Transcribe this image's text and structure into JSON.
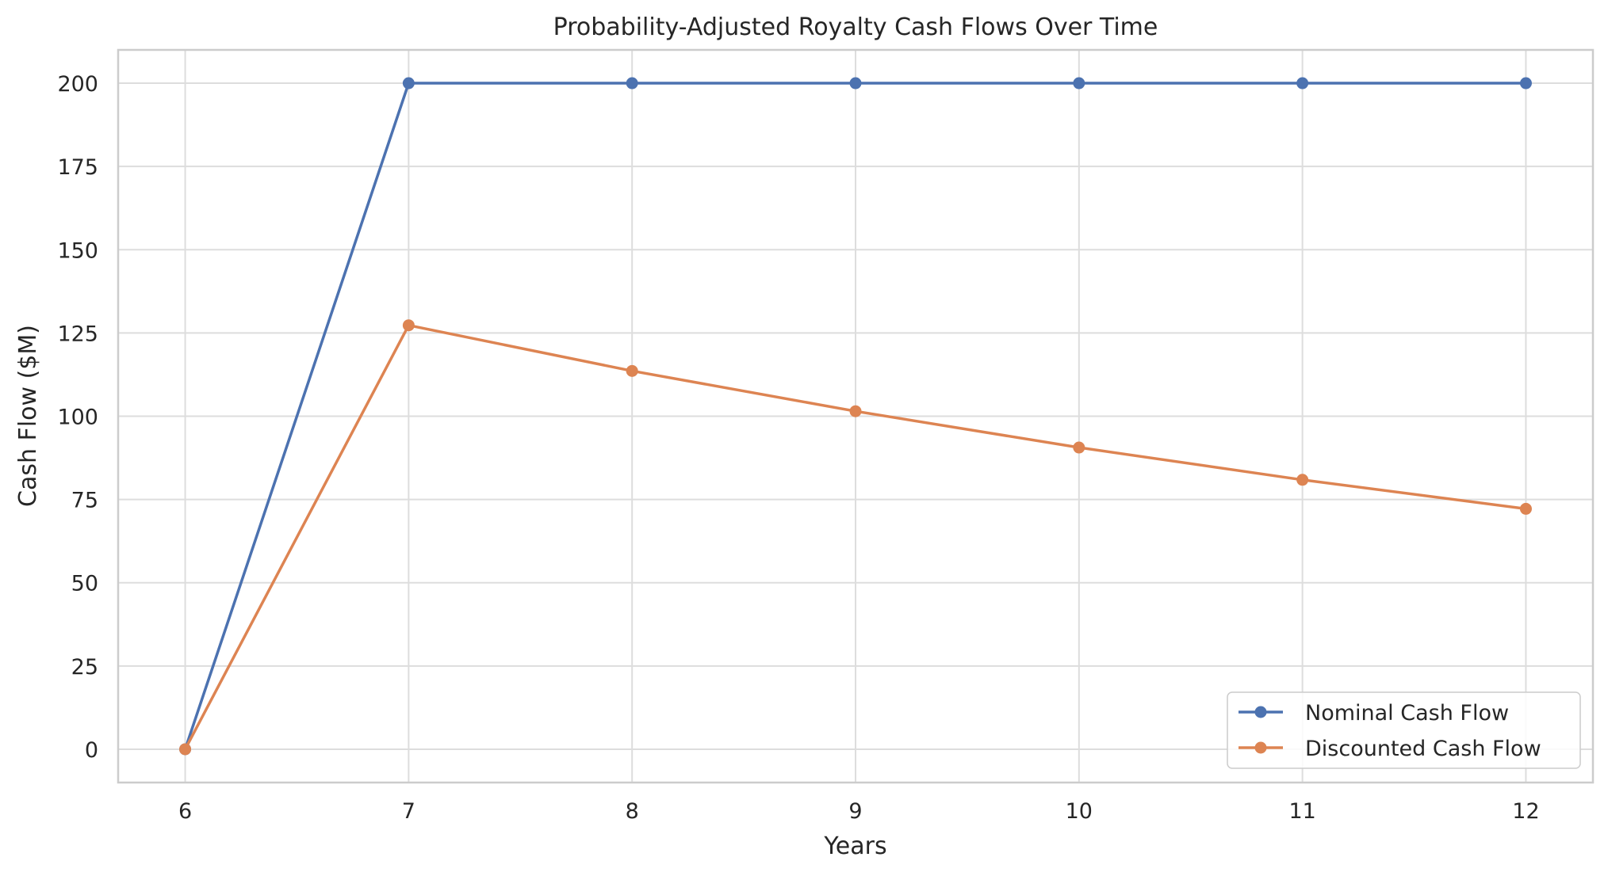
{
  "chart_data": {
    "type": "line",
    "title": "Probability-Adjusted Royalty Cash Flows Over Time",
    "xlabel": "Years",
    "ylabel": "Cash Flow ($M)",
    "x": [
      6,
      7,
      8,
      9,
      10,
      11,
      12
    ],
    "xlim": [
      5.7,
      12.3
    ],
    "ylim": [
      -10,
      210
    ],
    "xticks": [
      6,
      7,
      8,
      9,
      10,
      11,
      12
    ],
    "yticks": [
      0,
      25,
      50,
      75,
      100,
      125,
      150,
      175,
      200
    ],
    "grid": true,
    "legend_position": "lower-right",
    "series": [
      {
        "name": "Nominal Cash Flow",
        "color": "#4c72b0",
        "marker": "circle",
        "values": [
          0,
          200,
          200,
          200,
          200,
          200,
          200
        ]
      },
      {
        "name": "Discounted Cash Flow",
        "color": "#dd8452",
        "marker": "circle",
        "values": [
          0,
          127.3,
          113.6,
          101.5,
          90.6,
          80.9,
          72.2
        ]
      }
    ]
  }
}
